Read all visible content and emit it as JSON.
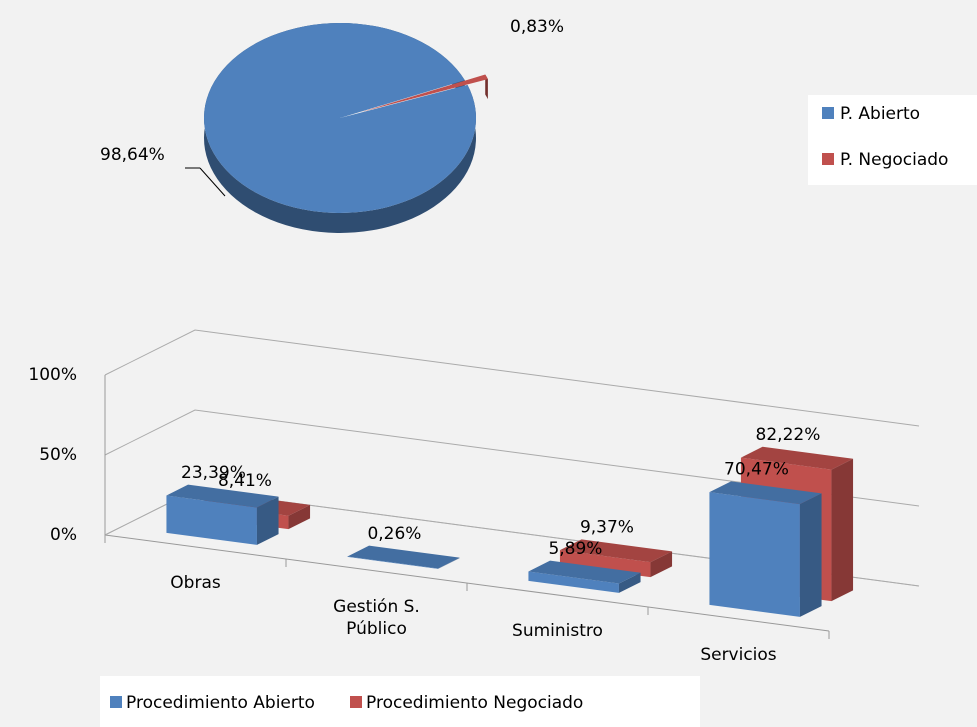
{
  "chart_data": [
    {
      "type": "pie",
      "categories": [
        "P. Abierto",
        "P. Negociado"
      ],
      "values": [
        98.64,
        0.83
      ],
      "value_labels": [
        "98,64%",
        "0,83%"
      ],
      "colors": [
        "#4f81bd",
        "#c0504d"
      ],
      "legend": "right"
    },
    {
      "type": "bar3d",
      "categories": [
        "Obras",
        "Gestión S. Público",
        "Suministro",
        "Servicios"
      ],
      "series": [
        {
          "name": "Procedimiento Abierto",
          "color": "#4f81bd",
          "values": [
            23.39,
            0.26,
            5.89,
            70.47
          ],
          "value_labels": [
            "23,39%",
            "0,26%",
            "5,89%",
            "70,47%"
          ]
        },
        {
          "name": "Procedimiento Negociado",
          "color": "#c0504d",
          "values": [
            8.41,
            null,
            9.37,
            82.22
          ],
          "value_labels": [
            "8,41%",
            null,
            "9,37%",
            "82,22%"
          ]
        }
      ],
      "ylim": [
        0,
        100
      ],
      "yticks": [
        {
          "value": 0,
          "label": "0%"
        },
        {
          "value": 50,
          "label": "50%"
        },
        {
          "value": 100,
          "label": "100%"
        }
      ],
      "grid": true,
      "legend": "bottom"
    }
  ]
}
